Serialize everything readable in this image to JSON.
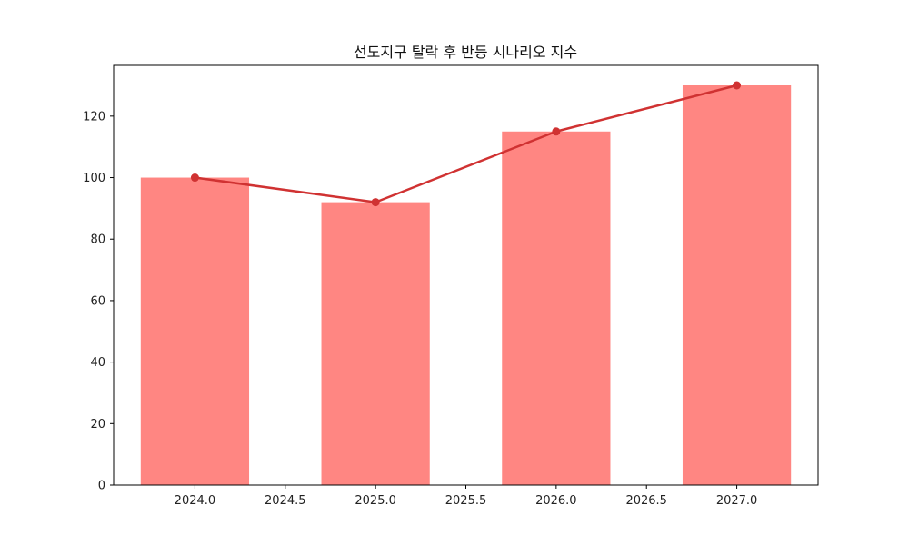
{
  "chart_data": {
    "type": "bar",
    "title": "선도지구 탈락 후 반등 시나리오 지수",
    "xlabel": "",
    "ylabel": "",
    "x": [
      2024,
      2025,
      2026,
      2027
    ],
    "series": [
      {
        "type": "bar",
        "values": [
          100,
          92,
          115,
          130
        ]
      },
      {
        "type": "line",
        "values": [
          100,
          92,
          115,
          130
        ]
      }
    ],
    "xlim": [
      2023.55,
      2027.45
    ],
    "ylim": [
      0,
      136.5
    ],
    "xticks": [
      "2024.0",
      "2024.5",
      "2025.0",
      "2025.5",
      "2026.0",
      "2026.5",
      "2027.0"
    ],
    "yticks": [
      "0",
      "20",
      "40",
      "60",
      "80",
      "100",
      "120"
    ],
    "bar_width": 0.6,
    "grid": false,
    "colors": {
      "bar": "#ff8682",
      "line": "#d03232"
    }
  }
}
